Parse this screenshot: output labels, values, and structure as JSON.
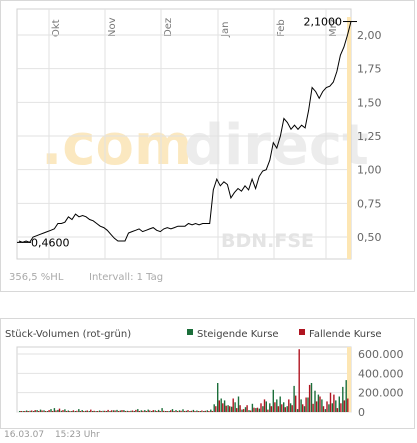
{
  "watermark": {
    "text_light": ".com",
    "text_dark": "direct",
    "symbol": "BDN.FSE"
  },
  "price_chart": {
    "footer_change": "356,5 %HL",
    "footer_interval": "Intervall: 1 Tag"
  },
  "volume_chart": {
    "title": "Stück-Volumen (rot-grün)",
    "legend_up": "Steigende Kurse",
    "legend_down": "Fallende Kurse",
    "colors": {
      "up": "#1b6e3a",
      "down": "#b01420",
      "line": "#000000"
    }
  },
  "footer": {
    "date": "16.03.07",
    "time": "15:23 Uhr"
  },
  "chart_data": [
    {
      "type": "line",
      "x_ticks": [
        "Okt",
        "Nov",
        "Dez",
        "Jan",
        "Feb",
        "Mrz"
      ],
      "y_ticks": [
        "2,00",
        "1,75",
        "1,50",
        "1,25",
        "1,00",
        "0,75",
        "0,50"
      ],
      "y_tick_values": [
        2.0,
        1.75,
        1.5,
        1.25,
        1.0,
        0.75,
        0.5
      ],
      "ylim": [
        0.36,
        2.1
      ],
      "grid": true,
      "annotations": {
        "high": "2,1000",
        "low": "0,4600",
        "high_value": 2.1,
        "low_value": 0.46
      },
      "series": [
        {
          "values": [
            0.47,
            0.46,
            0.47,
            0.46,
            0.5,
            0.51,
            0.52,
            0.53,
            0.54,
            0.55,
            0.56,
            0.6,
            0.6,
            0.61,
            0.65,
            0.63,
            0.67,
            0.65,
            0.66,
            0.65,
            0.63,
            0.62,
            0.6,
            0.58,
            0.57,
            0.55,
            0.52,
            0.49,
            0.47,
            0.47,
            0.47,
            0.53,
            0.54,
            0.55,
            0.56,
            0.54,
            0.55,
            0.56,
            0.57,
            0.55,
            0.54,
            0.56,
            0.57,
            0.56,
            0.57,
            0.58,
            0.58,
            0.58,
            0.6,
            0.59,
            0.6,
            0.59,
            0.6,
            0.6,
            0.6,
            0.85,
            0.93,
            0.88,
            0.91,
            0.89,
            0.79,
            0.83,
            0.86,
            0.84,
            0.88,
            0.85,
            0.93,
            0.86,
            0.95,
            0.99,
            1.0,
            1.07,
            1.2,
            1.16,
            1.25,
            1.38,
            1.35,
            1.3,
            1.33,
            1.3,
            1.33,
            1.31,
            1.44,
            1.61,
            1.58,
            1.53,
            1.58,
            1.61,
            1.62,
            1.65,
            1.73,
            1.85,
            1.91,
            2.0,
            2.1
          ]
        }
      ]
    },
    {
      "type": "bar",
      "y_ticks": [
        "600.000",
        "400.000",
        "200.000",
        "0"
      ],
      "y_tick_values": [
        600000,
        400000,
        200000,
        0
      ],
      "ylim": [
        0,
        650000
      ],
      "series": [
        {
          "values": [
            10000,
            8000,
            15000,
            12000,
            5000,
            20000,
            25000,
            18000,
            10000,
            30000,
            40000,
            22000,
            12000,
            28000,
            15000,
            10000,
            8000,
            30000,
            20000,
            12000,
            5000,
            10000,
            8000,
            15000,
            12000,
            8000,
            10000,
            18000,
            22000,
            15000,
            20000,
            12000,
            12000,
            5000,
            30000,
            18000,
            20000,
            25000,
            10000,
            18000,
            22000,
            40000,
            10000,
            5000,
            30000,
            20000,
            18000,
            28000,
            12000,
            10000,
            22000,
            15000,
            5000,
            8000,
            18000,
            25000,
            80000,
            300000,
            140000,
            120000,
            70000,
            55000,
            100000,
            160000,
            25000,
            50000,
            20000,
            85000,
            40000,
            35000,
            60000,
            110000,
            90000,
            230000,
            130000,
            160000,
            100000,
            60000,
            90000,
            270000,
            30000,
            130000,
            60000,
            150000,
            300000,
            220000,
            180000,
            130000,
            30000,
            80000,
            90000,
            120000,
            160000,
            260000,
            330000
          ]
        },
        {
          "values": [
            5000,
            8000,
            5000,
            15000,
            20000,
            10000,
            15000,
            8000,
            20000,
            10000,
            15000,
            35000,
            20000,
            8000,
            10000,
            18000,
            12000,
            8000,
            10000,
            15000,
            25000,
            12000,
            10000,
            8000,
            12000,
            22000,
            18000,
            15000,
            8000,
            20000,
            8000,
            10000,
            15000,
            22000,
            8000,
            12000,
            6000,
            15000,
            20000,
            10000,
            8000,
            12000,
            8000,
            18000,
            10000,
            8000,
            12000,
            10000,
            20000,
            12000,
            8000,
            10000,
            15000,
            12000,
            10000,
            8000,
            60000,
            120000,
            90000,
            65000,
            60000,
            140000,
            40000,
            70000,
            30000,
            70000,
            15000,
            45000,
            45000,
            90000,
            130000,
            25000,
            60000,
            100000,
            60000,
            80000,
            50000,
            130000,
            70000,
            170000,
            650000,
            80000,
            150000,
            280000,
            85000,
            110000,
            160000,
            60000,
            110000,
            200000,
            180000,
            40000,
            90000,
            120000,
            140000
          ]
        }
      ]
    }
  ]
}
